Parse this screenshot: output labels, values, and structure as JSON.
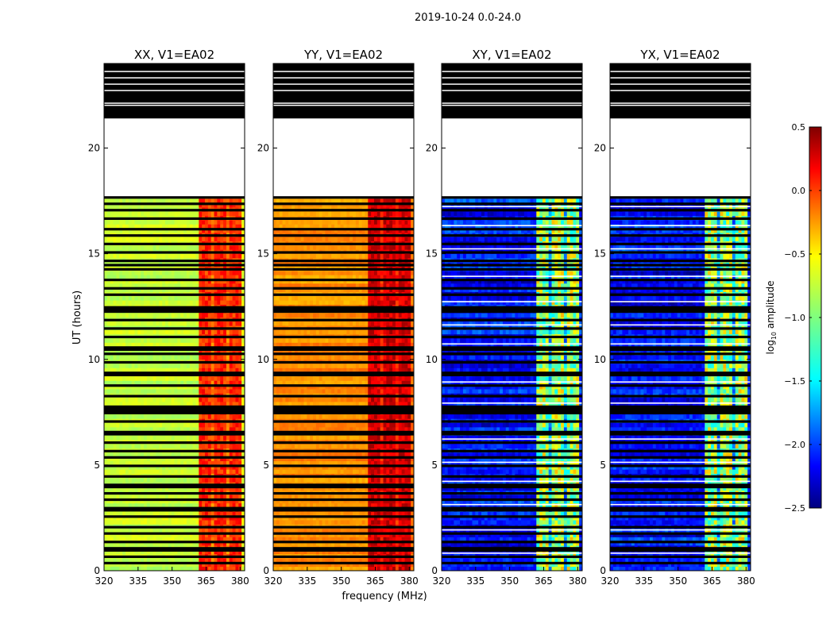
{
  "chart_data": {
    "type": "heatmap",
    "title": "2019-10-24 0.0-24.0",
    "xlabel": "frequency (MHz)",
    "ylabel": "UT (hours)",
    "xlim": [
      320,
      382
    ],
    "ylim": [
      0,
      24
    ],
    "xticks": [
      320,
      335,
      350,
      365,
      380
    ],
    "yticks": [
      0,
      5,
      10,
      15,
      20
    ],
    "data_extent_hours": [
      0,
      17.6
    ],
    "masked_upper_block_hours": [
      21.4,
      24
    ],
    "colorbar": {
      "label": "log10 amplitude",
      "label_parts": [
        "log",
        "10",
        " amplitude"
      ],
      "range": [
        -2.5,
        0.5
      ],
      "ticks": [
        0.5,
        0.0,
        -0.5,
        -1.0,
        -1.5,
        -2.0,
        -2.5
      ],
      "tick_labels": [
        "0.5",
        "0.0",
        "−0.5",
        "−1.0",
        "−1.5",
        "−2.0",
        "−2.5"
      ]
    },
    "strong_channel_band_mhz": [
      362,
      380
    ],
    "panels": [
      {
        "title": "XX, V1=EA02",
        "polarization": "XX",
        "base_level": -0.8,
        "band_level": 0.0
      },
      {
        "title": "YY, V1=EA02",
        "polarization": "YY",
        "base_level": -0.3,
        "band_level": 0.25
      },
      {
        "title": "XY, V1=EA02",
        "polarization": "XY",
        "base_level": -2.1,
        "band_level": -0.9
      },
      {
        "title": "YX, V1=EA02",
        "polarization": "YX",
        "base_level": -2.1,
        "band_level": -0.9
      }
    ],
    "flagged_hours": [
      0.3,
      0.6,
      0.9,
      1.0,
      1.3,
      1.7,
      2.0,
      2.5,
      2.8,
      2.9,
      3.3,
      3.6,
      3.9,
      4.0,
      4.4,
      4.9,
      5.3,
      5.6,
      6.0,
      6.4,
      6.5,
      7.0,
      7.4,
      7.5,
      7.6,
      7.7,
      8.2,
      8.7,
      9.2,
      9.3,
      9.8,
      10.2,
      10.4,
      10.5,
      11.0,
      11.4,
      11.8,
      12.2,
      12.3,
      12.4,
      13.0,
      13.3,
      13.7,
      14.2,
      14.4,
      14.6,
      15.0,
      15.4,
      15.8,
      16.1,
      16.6,
      17.0,
      17.3,
      17.6
    ],
    "blank_hours": [
      0.8,
      1.9,
      3.1,
      4.2,
      5.1,
      6.2,
      7.9,
      8.9,
      10.7,
      11.6,
      12.7,
      13.9,
      15.2,
      16.3,
      17.2
    ],
    "masked_block_gaps_hours": [
      22.0,
      22.1,
      23.0,
      23.3,
      23.6,
      22.7
    ]
  }
}
